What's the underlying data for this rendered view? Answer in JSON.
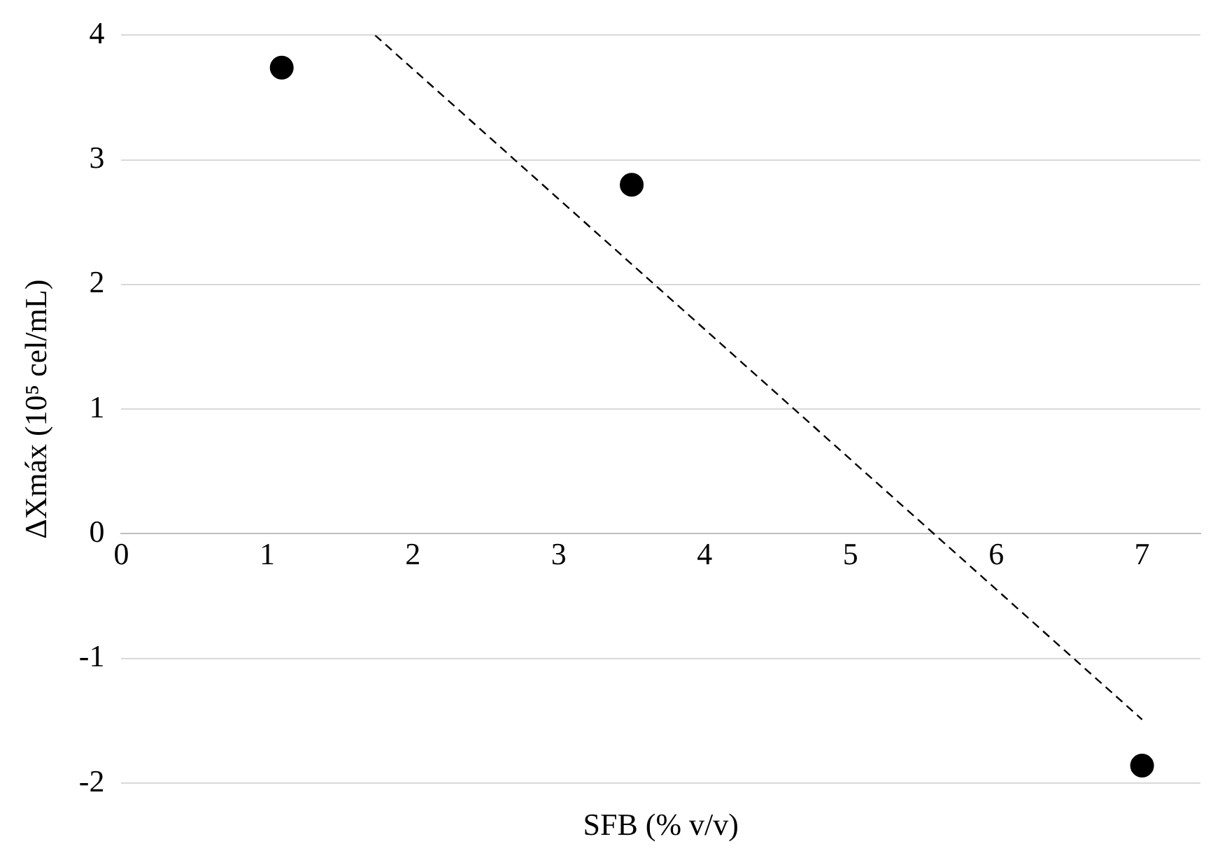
{
  "chart_data": {
    "type": "scatter",
    "xlabel": "SFB (% v/v)",
    "ylabel": "ΔXmáx (10⁵ cel/mL)",
    "xlim": [
      0,
      7.4
    ],
    "xticks": [
      0,
      1,
      2,
      3,
      4,
      5,
      6,
      7
    ],
    "ylim": [
      -2,
      4
    ],
    "yticks": [
      -2,
      -1,
      0,
      1,
      2,
      3,
      4
    ],
    "grid": "y",
    "marker": "circle",
    "series": [
      {
        "color": "#000000",
        "x": [
          1.1,
          3.5,
          7
        ],
        "values": [
          3.74,
          2.8,
          -1.86
        ]
      },
      {
        "type": "line",
        "color": "#000000",
        "line_style": "dashed",
        "marker": "none",
        "x": [
          1.74,
          7
        ],
        "values": [
          4,
          -1.49
        ]
      }
    ]
  }
}
